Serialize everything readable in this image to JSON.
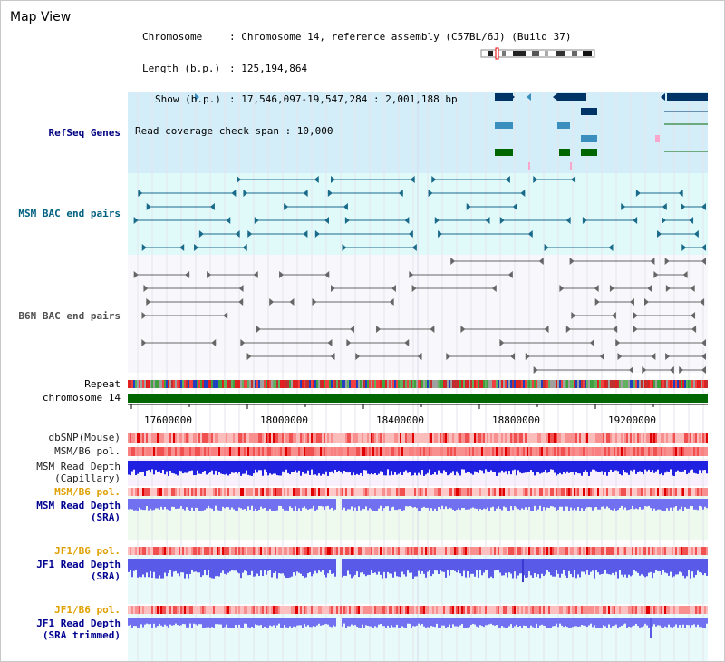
{
  "title": "Map View",
  "info": {
    "chromosome_key": "Chromosome",
    "chromosome_value": ": Chromosome 14, reference assembly (C57BL/6J) (Build 37)",
    "length_key": "Length (b.p.)",
    "length_value": ": 125,194,864",
    "show_key": "Show (b.p.)",
    "show_value": ": 17,546,097-19,547,284 : 2,001,188 bp",
    "coverage_line": "Read coverage check span : 10,000"
  },
  "tracks": {
    "refseq": "RefSeq Genes",
    "msm_bac": "MSM BAC end pairs",
    "b6n_bac": "B6N BAC end pairs",
    "repeat": "Repeat",
    "chromosome": "chromosome 14",
    "dbsnp": "dbSNP(Mouse)",
    "msm_b6_pol_1": "MSM/B6 pol.",
    "msm_depth_cap_1": "MSM Read Depth",
    "msm_depth_cap_2": "(Capillary)",
    "msm_b6_pol_2": "MSM/B6 pol.",
    "msm_depth_sra_1": "MSM Read Depth",
    "msm_depth_sra_2": "(SRA)",
    "jf1_pol_1": "JF1/B6 pol.",
    "jf1_depth_sra_1": "JF1 Read Depth",
    "jf1_depth_sra_2": "(SRA)",
    "jf1_pol_2": "JF1/B6 pol.",
    "jf1_trim_1": "JF1 Read Depth",
    "jf1_trim_2": "(SRA trimmed)"
  },
  "axis": {
    "ticks": [
      "17600000",
      "18000000",
      "18400000",
      "18800000",
      "19200000"
    ]
  },
  "colors": {
    "refseq_bg": "#d4eef9",
    "msm_bg": "#e0fafa",
    "gene_dark": "#003366",
    "gene_mid": "#3a8fbf",
    "gene_green": "#006600",
    "chromosome_bar": "#006600",
    "depth_blue": "#2020e0",
    "depth_light": "#7070f0"
  }
}
